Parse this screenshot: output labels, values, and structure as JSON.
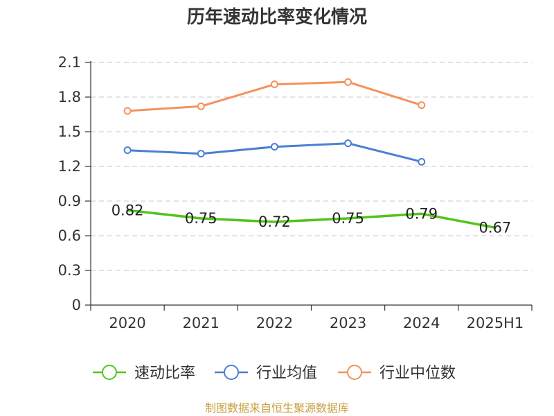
{
  "chart_data": {
    "type": "line",
    "title": "历年速动比率变化情况",
    "xlabel": "",
    "ylabel": "",
    "categories": [
      "2020",
      "2021",
      "2022",
      "2023",
      "2024",
      "2025H1"
    ],
    "ylim": [
      0,
      2.1
    ],
    "yticks": [
      "0",
      "0.3",
      "0.6",
      "0.9",
      "1.2",
      "1.5",
      "1.8",
      "2.1"
    ],
    "grid": true,
    "legend_position": "bottom",
    "series": [
      {
        "name": "速动比率",
        "color": "#52c41a",
        "values": [
          0.82,
          0.75,
          0.72,
          0.75,
          0.79,
          0.67
        ],
        "labels": [
          "0.82",
          "0.75",
          "0.72",
          "0.75",
          "0.79",
          "0.67"
        ],
        "show_labels": true,
        "show_markers": false
      },
      {
        "name": "行业均值",
        "color": "#4a7fd4",
        "values": [
          1.34,
          1.31,
          1.37,
          1.4,
          1.24,
          null
        ],
        "show_labels": false,
        "show_markers": true
      },
      {
        "name": "行业中位数",
        "color": "#f5915a",
        "values": [
          1.68,
          1.72,
          1.91,
          1.93,
          1.73,
          null
        ],
        "show_labels": false,
        "show_markers": true
      }
    ]
  },
  "footer": {
    "source": "制图数据来自恒生聚源数据库"
  }
}
